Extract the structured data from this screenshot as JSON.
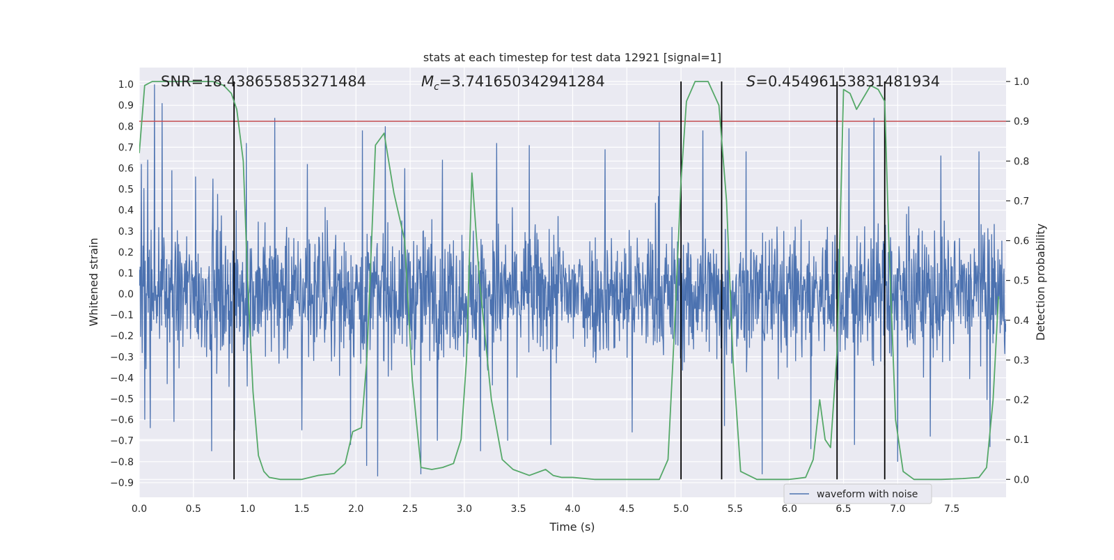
{
  "chart_data": {
    "type": "line",
    "title": "stats at each timestep for test data 12921 [signal=1]",
    "xlabel": "Time (s)",
    "ylabel_left": "Whitened strain",
    "ylabel_right": "Detection probability",
    "xlim": [
      0.0,
      8.0
    ],
    "ylim_left": [
      -0.97,
      1.08
    ],
    "ylim_right": [
      -0.045,
      1.035
    ],
    "x_ticks": [
      0.0,
      0.5,
      1.0,
      1.5,
      2.0,
      2.5,
      3.0,
      3.5,
      4.0,
      4.5,
      5.0,
      5.5,
      6.0,
      6.5,
      7.0,
      7.5
    ],
    "x_tick_labels": [
      "0.0",
      "0.5",
      "1.0",
      "1.5",
      "2.0",
      "2.5",
      "3.0",
      "3.5",
      "4.0",
      "4.5",
      "5.0",
      "5.5",
      "6.0",
      "6.5",
      "7.0",
      "7.5"
    ],
    "left_ticks": [
      -0.9,
      -0.8,
      -0.7,
      -0.6,
      -0.5,
      -0.4,
      -0.3,
      -0.2,
      -0.1,
      0.0,
      0.1,
      0.2,
      0.3,
      0.4,
      0.5,
      0.6,
      0.7,
      0.8,
      0.9,
      1.0
    ],
    "left_tick_labels": [
      "−0.9",
      "−0.8",
      "−0.7",
      "−0.6",
      "−0.5",
      "−0.4",
      "−0.3",
      "−0.2",
      "−0.1",
      "0.0",
      "0.1",
      "0.2",
      "0.3",
      "0.4",
      "0.5",
      "0.6",
      "0.7",
      "0.8",
      "0.9",
      "1.0"
    ],
    "right_ticks": [
      0.0,
      0.1,
      0.2,
      0.3,
      0.4,
      0.5,
      0.6,
      0.7,
      0.8,
      0.9,
      1.0
    ],
    "right_tick_labels": [
      "0.0",
      "0.1",
      "0.2",
      "0.3",
      "0.4",
      "0.5",
      "0.6",
      "0.7",
      "0.8",
      "0.9",
      "1.0"
    ],
    "grid": true,
    "annotations": {
      "snr": "SNR=18.438655853271484",
      "mc_symbol": "M",
      "mc_sub": "c",
      "mc_value": "=3.741650342941284",
      "s_symbol": "S",
      "s_value": "=0.45496153831481934"
    },
    "threshold": 0.9,
    "segment_boundaries_s": [
      0.875,
      5.0,
      5.375,
      6.44,
      6.88
    ],
    "waveform_with_noise": {
      "name": "waveform with noise",
      "color": "#4c72b0",
      "n_samples": 2048,
      "dense_band": [
        -0.37,
        0.37
      ],
      "peaks": [
        {
          "t": 0.02,
          "v": 0.62
        },
        {
          "t": 0.08,
          "v": 0.64
        },
        {
          "t": 0.14,
          "v": 1.0
        },
        {
          "t": 0.21,
          "v": 0.91
        },
        {
          "t": 0.3,
          "v": 0.59
        },
        {
          "t": 0.52,
          "v": 0.56
        },
        {
          "t": 0.68,
          "v": 0.55
        },
        {
          "t": 0.99,
          "v": 0.72
        },
        {
          "t": 1.25,
          "v": 0.84
        },
        {
          "t": 1.55,
          "v": 0.62
        },
        {
          "t": 2.06,
          "v": 0.78
        },
        {
          "t": 2.27,
          "v": 0.8
        },
        {
          "t": 2.45,
          "v": 0.6
        },
        {
          "t": 2.8,
          "v": 0.64
        },
        {
          "t": 3.3,
          "v": 0.72
        },
        {
          "t": 3.6,
          "v": 0.71
        },
        {
          "t": 4.3,
          "v": 0.69
        },
        {
          "t": 4.8,
          "v": 0.82
        },
        {
          "t": 5.2,
          "v": 0.78
        },
        {
          "t": 5.6,
          "v": 0.68
        },
        {
          "t": 6.55,
          "v": 0.79
        },
        {
          "t": 6.78,
          "v": 0.84
        },
        {
          "t": 7.4,
          "v": 0.66
        },
        {
          "t": 7.75,
          "v": 0.68
        },
        {
          "t": 0.05,
          "v": -0.6
        },
        {
          "t": 0.1,
          "v": -0.64
        },
        {
          "t": 0.32,
          "v": -0.61
        },
        {
          "t": 0.67,
          "v": -0.75
        },
        {
          "t": 0.88,
          "v": -0.65
        },
        {
          "t": 1.5,
          "v": -0.65
        },
        {
          "t": 1.95,
          "v": -0.72
        },
        {
          "t": 2.1,
          "v": -0.82
        },
        {
          "t": 2.2,
          "v": -0.87
        },
        {
          "t": 2.6,
          "v": -0.86
        },
        {
          "t": 2.75,
          "v": -0.7
        },
        {
          "t": 3.15,
          "v": -0.75
        },
        {
          "t": 3.4,
          "v": -0.7
        },
        {
          "t": 3.8,
          "v": -0.72
        },
        {
          "t": 4.55,
          "v": -0.66
        },
        {
          "t": 5.4,
          "v": -0.63
        },
        {
          "t": 5.75,
          "v": -0.86
        },
        {
          "t": 6.2,
          "v": -0.74
        },
        {
          "t": 6.6,
          "v": -0.72
        },
        {
          "t": 7.0,
          "v": -0.8
        },
        {
          "t": 7.3,
          "v": -0.68
        },
        {
          "t": 7.85,
          "v": -0.73
        }
      ]
    },
    "detection_probability": {
      "color": "#55a868",
      "points": [
        [
          0.0,
          0.82
        ],
        [
          0.05,
          0.99
        ],
        [
          0.12,
          1.0
        ],
        [
          0.3,
          1.0
        ],
        [
          0.5,
          1.0
        ],
        [
          0.68,
          1.0
        ],
        [
          0.78,
          0.99
        ],
        [
          0.85,
          0.97
        ],
        [
          0.9,
          0.93
        ],
        [
          0.96,
          0.8
        ],
        [
          1.0,
          0.5
        ],
        [
          1.05,
          0.22
        ],
        [
          1.1,
          0.06
        ],
        [
          1.15,
          0.02
        ],
        [
          1.2,
          0.005
        ],
        [
          1.3,
          0.0
        ],
        [
          1.5,
          0.0
        ],
        [
          1.65,
          0.01
        ],
        [
          1.8,
          0.015
        ],
        [
          1.9,
          0.04
        ],
        [
          1.97,
          0.12
        ],
        [
          2.05,
          0.13
        ],
        [
          2.1,
          0.3
        ],
        [
          2.18,
          0.84
        ],
        [
          2.26,
          0.87
        ],
        [
          2.35,
          0.72
        ],
        [
          2.45,
          0.6
        ],
        [
          2.52,
          0.25
        ],
        [
          2.6,
          0.03
        ],
        [
          2.7,
          0.025
        ],
        [
          2.8,
          0.03
        ],
        [
          2.9,
          0.04
        ],
        [
          2.97,
          0.1
        ],
        [
          3.02,
          0.3
        ],
        [
          3.07,
          0.77
        ],
        [
          3.14,
          0.5
        ],
        [
          3.25,
          0.2
        ],
        [
          3.35,
          0.05
        ],
        [
          3.45,
          0.025
        ],
        [
          3.6,
          0.01
        ],
        [
          3.75,
          0.025
        ],
        [
          3.82,
          0.01
        ],
        [
          3.9,
          0.005
        ],
        [
          4.0,
          0.005
        ],
        [
          4.2,
          0.0
        ],
        [
          4.5,
          0.0
        ],
        [
          4.8,
          0.0
        ],
        [
          4.88,
          0.05
        ],
        [
          4.94,
          0.38
        ],
        [
          5.0,
          0.75
        ],
        [
          5.05,
          0.95
        ],
        [
          5.13,
          1.0
        ],
        [
          5.25,
          1.0
        ],
        [
          5.35,
          0.94
        ],
        [
          5.42,
          0.7
        ],
        [
          5.48,
          0.3
        ],
        [
          5.55,
          0.02
        ],
        [
          5.7,
          0.0
        ],
        [
          6.0,
          0.0
        ],
        [
          6.15,
          0.005
        ],
        [
          6.22,
          0.05
        ],
        [
          6.28,
          0.2
        ],
        [
          6.33,
          0.1
        ],
        [
          6.38,
          0.08
        ],
        [
          6.44,
          0.32
        ],
        [
          6.5,
          0.98
        ],
        [
          6.56,
          0.97
        ],
        [
          6.62,
          0.93
        ],
        [
          6.75,
          0.99
        ],
        [
          6.82,
          0.98
        ],
        [
          6.88,
          0.95
        ],
        [
          6.92,
          0.58
        ],
        [
          6.98,
          0.15
        ],
        [
          7.05,
          0.02
        ],
        [
          7.15,
          0.0
        ],
        [
          7.4,
          0.0
        ],
        [
          7.6,
          0.002
        ],
        [
          7.75,
          0.005
        ],
        [
          7.82,
          0.03
        ],
        [
          7.88,
          0.2
        ],
        [
          7.93,
          0.46
        ]
      ]
    },
    "legend": [
      {
        "label": "waveform with noise",
        "color": "#4c72b0"
      }
    ],
    "legend_position": "lower-right"
  }
}
